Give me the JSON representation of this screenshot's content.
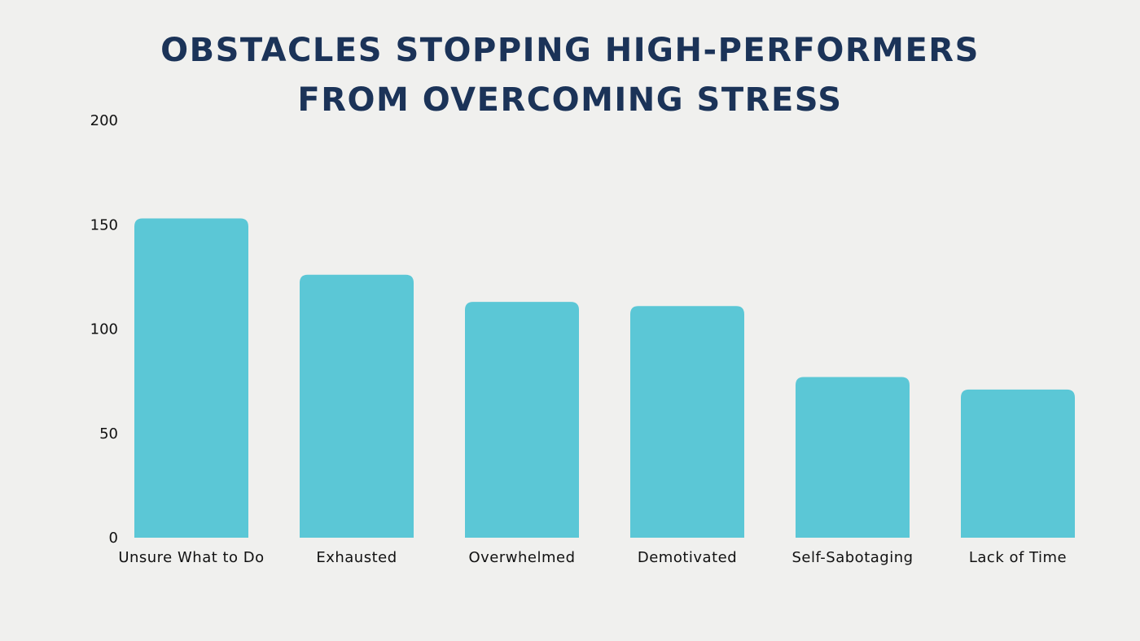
{
  "chart_data": {
    "type": "bar",
    "title_lines": [
      "OBSTACLES STOPPING HIGH-PERFORMERS",
      "FROM OVERCOMING STRESS"
    ],
    "categories": [
      "Unsure What to Do",
      "Exhausted",
      "Overwhelmed",
      "Demotivated",
      "Self-Sabotaging",
      "Lack of Time"
    ],
    "values": [
      153,
      126,
      113,
      111,
      77,
      71
    ],
    "xlabel": "",
    "ylabel": "",
    "ylim": [
      0,
      200
    ],
    "yticks": [
      0,
      50,
      100,
      150,
      200
    ],
    "grid": false,
    "bar_color": "#5bc7d6",
    "title_color": "#1b3358"
  }
}
